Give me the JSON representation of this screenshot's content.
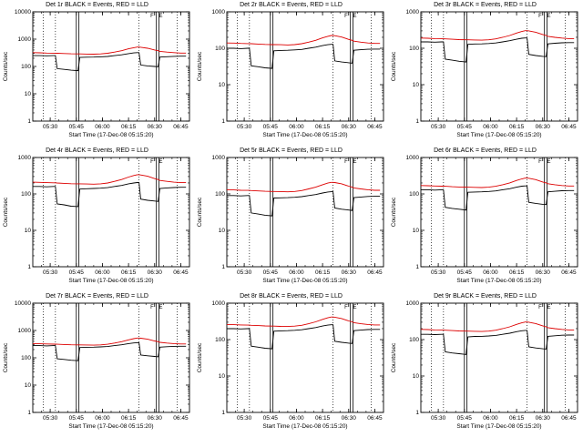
{
  "window": {
    "background": "#ffffff",
    "ink": "#000000",
    "red": "#dd0000"
  },
  "shared": {
    "xlabel": "Start Time (17-Dec-08 05:15:20)",
    "ylabel": "Counts/sec",
    "xlim": [
      5,
      95
    ],
    "xticks": [
      {
        "m": 15,
        "label": "05:30"
      },
      {
        "m": 30,
        "label": "05:45"
      },
      {
        "m": 45,
        "label": "06:00"
      },
      {
        "m": 60,
        "label": "06:15"
      },
      {
        "m": 75,
        "label": "06:30"
      },
      {
        "m": 90,
        "label": "06:45"
      }
    ],
    "x_minutes": [
      5,
      9,
      13,
      17,
      18,
      19,
      23,
      27,
      31,
      32,
      36,
      40,
      44,
      48,
      52,
      56,
      60,
      63,
      65,
      66,
      67,
      71,
      75,
      77,
      78,
      82,
      86,
      90,
      93
    ],
    "vlines_solid": [
      30,
      31.5,
      76,
      77.5
    ],
    "vlines_dotted": [
      11,
      18,
      66,
      88
    ],
    "annotations": [
      {
        "text": "F",
        "m": 73.5
      },
      {
        "text": "E",
        "m": 78.5
      }
    ],
    "legend_note": "BLACK = Events, RED = LLD"
  },
  "chart_data": [
    {
      "type": "line",
      "title": "Det 1r BLACK = Events, RED = LLD",
      "ylim": [
        1,
        10000
      ],
      "yticks": [
        1,
        10,
        100,
        1000,
        10000
      ],
      "series": [
        {
          "name": "Events",
          "color": "#000000",
          "values": [
            250,
            250,
            245,
            250,
            250,
            83,
            78,
            73,
            70,
            213,
            218,
            220,
            225,
            233,
            250,
            268,
            295,
            313,
            320,
            320,
            113,
            105,
            100,
            98,
            220,
            228,
            235,
            238,
            238
          ]
        },
        {
          "name": "LLD",
          "color": "#dd0000",
          "values": [
            320,
            317,
            310,
            307,
            307,
            304,
            298,
            291,
            288,
            288,
            285,
            282,
            288,
            304,
            336,
            378,
            442,
            486,
            512,
            512,
            506,
            464,
            400,
            378,
            358,
            336,
            320,
            310,
            310
          ]
        }
      ]
    },
    {
      "type": "line",
      "title": "Det 2r BLACK = Events, RED = LLD",
      "ylim": [
        1,
        1000
      ],
      "yticks": [
        1,
        10,
        100,
        1000
      ],
      "series": [
        {
          "name": "Events",
          "color": "#000000",
          "values": [
            100,
            100,
            98,
            100,
            100,
            33,
            31,
            29,
            28,
            85,
            87,
            88,
            90,
            93,
            100,
            107,
            118,
            125,
            128,
            128,
            45,
            42,
            40,
            39,
            88,
            91,
            94,
            95,
            95
          ]
        },
        {
          "name": "LLD",
          "color": "#dd0000",
          "values": [
            140,
            139,
            136,
            134,
            134,
            133,
            130,
            127,
            126,
            126,
            125,
            123,
            126,
            133,
            147,
            165,
            193,
            213,
            224,
            224,
            221,
            203,
            175,
            165,
            157,
            147,
            140,
            136,
            136
          ]
        }
      ]
    },
    {
      "type": "line",
      "title": "Det 3r BLACK = Events, RED = LLD",
      "ylim": [
        1,
        1000
      ],
      "yticks": [
        1,
        10,
        100,
        1000
      ],
      "series": [
        {
          "name": "Events",
          "color": "#000000",
          "values": [
            150,
            150,
            147,
            150,
            150,
            50,
            47,
            44,
            42,
            128,
            131,
            132,
            135,
            140,
            150,
            161,
            177,
            188,
            192,
            192,
            68,
            63,
            60,
            59,
            132,
            137,
            141,
            143,
            143
          ]
        },
        {
          "name": "LLD",
          "color": "#dd0000",
          "values": [
            190,
            188,
            184,
            182,
            182,
            181,
            177,
            173,
            171,
            171,
            169,
            167,
            171,
            181,
            200,
            224,
            262,
            289,
            304,
            304,
            300,
            276,
            238,
            224,
            213,
            200,
            190,
            184,
            184
          ]
        }
      ]
    },
    {
      "type": "line",
      "title": "Det 4r BLACK = Events, RED = LLD",
      "ylim": [
        1,
        1000
      ],
      "yticks": [
        1,
        10,
        100,
        1000
      ],
      "series": [
        {
          "name": "Events",
          "color": "#000000",
          "values": [
            160,
            160,
            157,
            160,
            160,
            53,
            50,
            46,
            45,
            136,
            139,
            141,
            144,
            149,
            160,
            171,
            189,
            200,
            205,
            205,
            72,
            67,
            64,
            62,
            141,
            146,
            150,
            152,
            152
          ]
        },
        {
          "name": "LLD",
          "color": "#dd0000",
          "values": [
            210,
            208,
            204,
            202,
            202,
            200,
            195,
            191,
            189,
            189,
            187,
            185,
            189,
            200,
            221,
            248,
            290,
            319,
            336,
            336,
            332,
            305,
            263,
            248,
            235,
            221,
            210,
            204,
            204
          ]
        }
      ]
    },
    {
      "type": "line",
      "title": "Det 5r BLACK = Events, RED = LLD",
      "ylim": [
        1,
        1000
      ],
      "yticks": [
        1,
        10,
        100,
        1000
      ],
      "series": [
        {
          "name": "Events",
          "color": "#000000",
          "values": [
            90,
            90,
            88,
            90,
            90,
            30,
            28,
            26,
            25,
            77,
            78,
            79,
            81,
            84,
            90,
            96,
            106,
            113,
            115,
            115,
            41,
            38,
            36,
            35,
            79,
            82,
            85,
            86,
            86
          ]
        },
        {
          "name": "LLD",
          "color": "#dd0000",
          "values": [
            130,
            129,
            126,
            125,
            125,
            124,
            121,
            118,
            117,
            117,
            116,
            114,
            117,
            124,
            137,
            153,
            179,
            198,
            208,
            208,
            205,
            189,
            163,
            153,
            146,
            137,
            130,
            126,
            126
          ]
        }
      ]
    },
    {
      "type": "line",
      "title": "Det 6r BLACK = Events, RED = LLD",
      "ylim": [
        1,
        1000
      ],
      "yticks": [
        1,
        10,
        100,
        1000
      ],
      "series": [
        {
          "name": "Events",
          "color": "#000000",
          "values": [
            130,
            130,
            127,
            130,
            130,
            43,
            40,
            38,
            36,
            111,
            113,
            114,
            117,
            121,
            130,
            139,
            153,
            163,
            166,
            166,
            59,
            55,
            52,
            51,
            114,
            118,
            122,
            124,
            124
          ]
        },
        {
          "name": "LLD",
          "color": "#dd0000",
          "values": [
            170,
            168,
            165,
            163,
            163,
            162,
            158,
            155,
            153,
            153,
            151,
            150,
            153,
            162,
            179,
            201,
            235,
            258,
            272,
            272,
            269,
            247,
            213,
            201,
            190,
            179,
            170,
            165,
            165
          ]
        }
      ]
    },
    {
      "type": "line",
      "title": "Det 7r BLACK = Events, RED = LLD",
      "ylim": [
        1,
        10000
      ],
      "yticks": [
        1,
        10,
        100,
        1000,
        10000
      ],
      "series": [
        {
          "name": "Events",
          "color": "#000000",
          "values": [
            280,
            280,
            274,
            280,
            280,
            92,
            87,
            81,
            78,
            238,
            244,
            246,
            252,
            260,
            280,
            300,
            330,
            350,
            358,
            358,
            126,
            118,
            112,
            109,
            246,
            255,
            263,
            266,
            266
          ]
        },
        {
          "name": "LLD",
          "color": "#dd0000",
          "values": [
            330,
            327,
            320,
            317,
            317,
            314,
            307,
            300,
            297,
            297,
            294,
            290,
            297,
            314,
            347,
            389,
            455,
            502,
            528,
            528,
            521,
            479,
            413,
            389,
            370,
            347,
            330,
            320,
            320
          ]
        }
      ]
    },
    {
      "type": "line",
      "title": "Det 8r BLACK = Events, RED = LLD",
      "ylim": [
        1,
        1000
      ],
      "yticks": [
        1,
        10,
        100,
        1000
      ],
      "series": [
        {
          "name": "Events",
          "color": "#000000",
          "values": [
            200,
            200,
            196,
            200,
            200,
            66,
            62,
            58,
            56,
            170,
            174,
            176,
            180,
            186,
            200,
            214,
            236,
            250,
            256,
            256,
            90,
            84,
            80,
            78,
            176,
            182,
            188,
            190,
            190
          ]
        },
        {
          "name": "LLD",
          "color": "#dd0000",
          "values": [
            260,
            257,
            252,
            250,
            250,
            247,
            242,
            237,
            234,
            234,
            231,
            229,
            234,
            247,
            273,
            307,
            359,
            395,
            416,
            416,
            411,
            377,
            325,
            307,
            291,
            273,
            260,
            252,
            252
          ]
        }
      ]
    },
    {
      "type": "line",
      "title": "Det 9r BLACK = Events, RED = LLD",
      "ylim": [
        1,
        1000
      ],
      "yticks": [
        1,
        10,
        100,
        1000
      ],
      "series": [
        {
          "name": "Events",
          "color": "#000000",
          "values": [
            140,
            140,
            137,
            140,
            140,
            46,
            43,
            41,
            39,
            119,
            122,
            123,
            126,
            130,
            140,
            150,
            165,
            175,
            179,
            179,
            63,
            59,
            56,
            55,
            123,
            127,
            132,
            133,
            133
          ]
        },
        {
          "name": "LLD",
          "color": "#dd0000",
          "values": [
            190,
            188,
            184,
            182,
            182,
            181,
            177,
            173,
            171,
            171,
            169,
            167,
            171,
            181,
            200,
            224,
            262,
            289,
            304,
            304,
            300,
            276,
            238,
            224,
            213,
            200,
            190,
            184,
            184
          ]
        }
      ]
    }
  ]
}
